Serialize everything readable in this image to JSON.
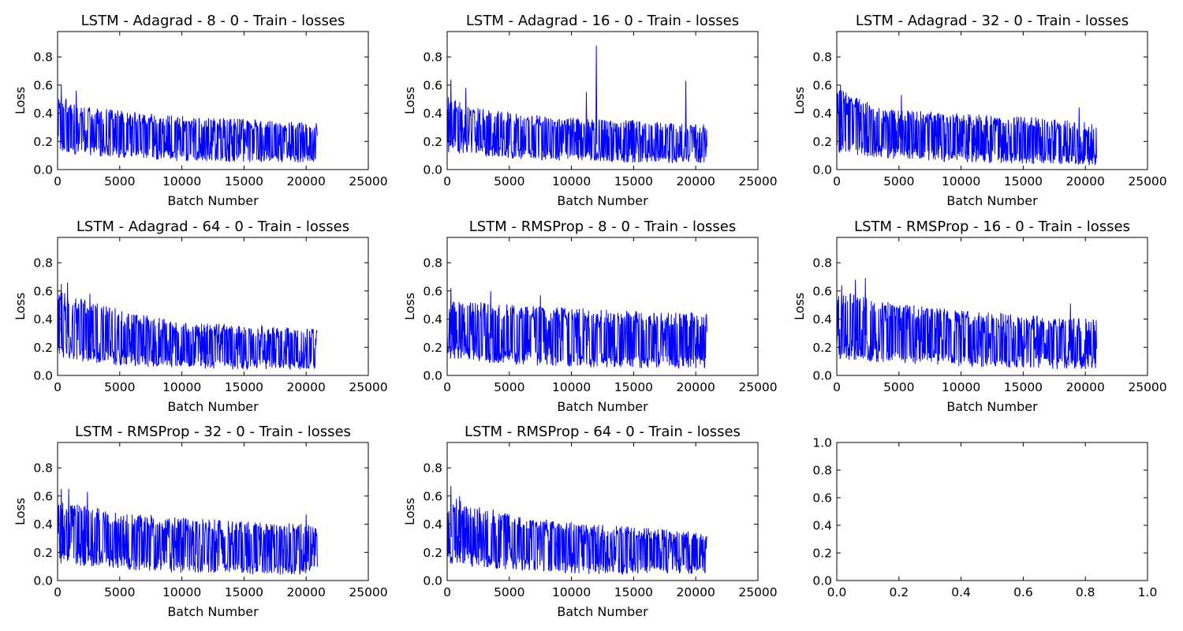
{
  "figure": {
    "line_color": "#0000ff",
    "background": "#ffffff"
  },
  "chart_data": [
    {
      "type": "line",
      "title": "LSTM - Adagrad - 8 - 0 - Train - losses",
      "xlabel": "Batch Number",
      "ylabel": "Loss",
      "xlim": [
        0,
        25000
      ],
      "ylim": [
        0,
        0.98
      ],
      "xticks": [
        "0",
        "5000",
        "10000",
        "15000",
        "20000",
        "25000"
      ],
      "yticks": [
        "0.0",
        "0.2",
        "0.4",
        "0.6",
        "0.8"
      ],
      "grid": false,
      "series": [
        {
          "color": "#0000ff",
          "x_range": [
            0,
            20900
          ],
          "upper_envelope": [
            [
              0,
              0.52
            ],
            [
              3000,
              0.44
            ],
            [
              6000,
              0.41
            ],
            [
              10000,
              0.38
            ],
            [
              15000,
              0.36
            ],
            [
              20900,
              0.33
            ]
          ],
          "lower_envelope": [
            [
              0,
              0.12
            ],
            [
              5000,
              0.08
            ],
            [
              10000,
              0.06
            ],
            [
              15000,
              0.05
            ],
            [
              20900,
              0.05
            ]
          ],
          "spikes": [
            [
              300,
              0.6
            ],
            [
              1500,
              0.56
            ]
          ]
        }
      ]
    },
    {
      "type": "line",
      "title": "LSTM - Adagrad - 16 - 0 - Train - losses",
      "xlabel": "Batch Number",
      "ylabel": "Loss",
      "xlim": [
        0,
        25000
      ],
      "ylim": [
        0,
        0.98
      ],
      "xticks": [
        "0",
        "5000",
        "10000",
        "15000",
        "20000",
        "25000"
      ],
      "yticks": [
        "0.0",
        "0.2",
        "0.4",
        "0.6",
        "0.8"
      ],
      "grid": false,
      "series": [
        {
          "color": "#0000ff",
          "x_range": [
            0,
            20900
          ],
          "upper_envelope": [
            [
              0,
              0.52
            ],
            [
              3000,
              0.43
            ],
            [
              6000,
              0.4
            ],
            [
              10000,
              0.37
            ],
            [
              15000,
              0.35
            ],
            [
              20900,
              0.32
            ]
          ],
          "lower_envelope": [
            [
              0,
              0.12
            ],
            [
              5000,
              0.08
            ],
            [
              10000,
              0.06
            ],
            [
              15000,
              0.05
            ],
            [
              20900,
              0.05
            ]
          ],
          "spikes": [
            [
              300,
              0.64
            ],
            [
              1500,
              0.58
            ],
            [
              11200,
              0.55
            ],
            [
              12000,
              0.88
            ],
            [
              19200,
              0.63
            ]
          ]
        }
      ]
    },
    {
      "type": "line",
      "title": "LSTM - Adagrad - 32 - 0 - Train - losses",
      "xlabel": "Batch Number",
      "ylabel": "Loss",
      "xlim": [
        0,
        25000
      ],
      "ylim": [
        0,
        0.98
      ],
      "xticks": [
        "0",
        "5000",
        "10000",
        "15000",
        "20000",
        "25000"
      ],
      "yticks": [
        "0.0",
        "0.2",
        "0.4",
        "0.6",
        "0.8"
      ],
      "grid": false,
      "series": [
        {
          "color": "#0000ff",
          "x_range": [
            0,
            20900
          ],
          "upper_envelope": [
            [
              0,
              0.58
            ],
            [
              3000,
              0.46
            ],
            [
              6000,
              0.42
            ],
            [
              10000,
              0.4
            ],
            [
              15000,
              0.38
            ],
            [
              20900,
              0.33
            ]
          ],
          "lower_envelope": [
            [
              0,
              0.12
            ],
            [
              5000,
              0.07
            ],
            [
              10000,
              0.05
            ],
            [
              15000,
              0.04
            ],
            [
              20900,
              0.03
            ]
          ],
          "spikes": [
            [
              300,
              0.6
            ],
            [
              5200,
              0.53
            ],
            [
              19500,
              0.44
            ]
          ]
        }
      ]
    },
    {
      "type": "line",
      "title": "LSTM - Adagrad - 64 - 0 - Train - losses",
      "xlabel": "Batch Number",
      "ylabel": "Loss",
      "xlim": [
        0,
        25000
      ],
      "ylim": [
        0,
        0.98
      ],
      "xticks": [
        "0",
        "5000",
        "10000",
        "15000",
        "20000",
        "25000"
      ],
      "yticks": [
        "0.0",
        "0.2",
        "0.4",
        "0.6",
        "0.8"
      ],
      "grid": false,
      "series": [
        {
          "color": "#0000ff",
          "x_range": [
            0,
            20900
          ],
          "upper_envelope": [
            [
              0,
              0.6
            ],
            [
              3000,
              0.52
            ],
            [
              6000,
              0.45
            ],
            [
              10000,
              0.38
            ],
            [
              15000,
              0.36
            ],
            [
              20900,
              0.33
            ]
          ],
          "lower_envelope": [
            [
              0,
              0.12
            ],
            [
              5000,
              0.07
            ],
            [
              10000,
              0.05
            ],
            [
              15000,
              0.04
            ],
            [
              20900,
              0.04
            ]
          ],
          "spikes": [
            [
              300,
              0.65
            ],
            [
              800,
              0.66
            ],
            [
              2600,
              0.58
            ]
          ]
        }
      ]
    },
    {
      "type": "line",
      "title": "LSTM - RMSProp - 8 - 0 - Train - losses",
      "xlabel": "Batch Number",
      "ylabel": "Loss",
      "xlim": [
        0,
        25000
      ],
      "ylim": [
        0,
        0.98
      ],
      "xticks": [
        "0",
        "5000",
        "10000",
        "15000",
        "20000",
        "25000"
      ],
      "yticks": [
        "0.0",
        "0.2",
        "0.4",
        "0.6",
        "0.8"
      ],
      "grid": false,
      "series": [
        {
          "color": "#0000ff",
          "x_range": [
            0,
            20900
          ],
          "upper_envelope": [
            [
              0,
              0.55
            ],
            [
              3000,
              0.52
            ],
            [
              6000,
              0.5
            ],
            [
              10000,
              0.48
            ],
            [
              15000,
              0.46
            ],
            [
              20900,
              0.44
            ]
          ],
          "lower_envelope": [
            [
              0,
              0.12
            ],
            [
              5000,
              0.08
            ],
            [
              10000,
              0.06
            ],
            [
              15000,
              0.05
            ],
            [
              20900,
              0.05
            ]
          ],
          "spikes": [
            [
              300,
              0.62
            ],
            [
              3500,
              0.6
            ],
            [
              7500,
              0.57
            ]
          ]
        }
      ]
    },
    {
      "type": "line",
      "title": "LSTM - RMSProp - 16 - 0 - Train - losses",
      "xlabel": "Batch Number",
      "ylabel": "Loss",
      "xlim": [
        0,
        25000
      ],
      "ylim": [
        0,
        0.98
      ],
      "xticks": [
        "0",
        "5000",
        "10000",
        "15000",
        "20000",
        "25000"
      ],
      "yticks": [
        "0.0",
        "0.2",
        "0.4",
        "0.6",
        "0.8"
      ],
      "grid": false,
      "series": [
        {
          "color": "#0000ff",
          "x_range": [
            0,
            20900
          ],
          "upper_envelope": [
            [
              0,
              0.6
            ],
            [
              3000,
              0.55
            ],
            [
              6000,
              0.5
            ],
            [
              10000,
              0.46
            ],
            [
              15000,
              0.43
            ],
            [
              20900,
              0.4
            ]
          ],
          "lower_envelope": [
            [
              0,
              0.12
            ],
            [
              5000,
              0.08
            ],
            [
              10000,
              0.06
            ],
            [
              15000,
              0.05
            ],
            [
              20900,
              0.04
            ]
          ],
          "spikes": [
            [
              400,
              0.64
            ],
            [
              1500,
              0.68
            ],
            [
              2300,
              0.69
            ],
            [
              18800,
              0.51
            ]
          ]
        }
      ]
    },
    {
      "type": "line",
      "title": "LSTM - RMSProp - 32 - 0 - Train - losses",
      "xlabel": "Batch Number",
      "ylabel": "Loss",
      "xlim": [
        0,
        25000
      ],
      "ylim": [
        0,
        0.98
      ],
      "xticks": [
        "0",
        "5000",
        "10000",
        "15000",
        "20000",
        "25000"
      ],
      "yticks": [
        "0.0",
        "0.2",
        "0.4",
        "0.6",
        "0.8"
      ],
      "grid": false,
      "series": [
        {
          "color": "#0000ff",
          "x_range": [
            0,
            20900
          ],
          "upper_envelope": [
            [
              0,
              0.58
            ],
            [
              3000,
              0.52
            ],
            [
              6000,
              0.48
            ],
            [
              10000,
              0.45
            ],
            [
              15000,
              0.42
            ],
            [
              20900,
              0.4
            ]
          ],
          "lower_envelope": [
            [
              0,
              0.12
            ],
            [
              5000,
              0.08
            ],
            [
              10000,
              0.05
            ],
            [
              15000,
              0.04
            ],
            [
              20900,
              0.04
            ]
          ],
          "spikes": [
            [
              300,
              0.65
            ],
            [
              900,
              0.65
            ],
            [
              2400,
              0.63
            ],
            [
              20000,
              0.47
            ]
          ]
        }
      ]
    },
    {
      "type": "line",
      "title": "LSTM - RMSProp - 64 - 0 - Train - losses",
      "xlabel": "Batch Number",
      "ylabel": "Loss",
      "xlim": [
        0,
        25000
      ],
      "ylim": [
        0,
        0.98
      ],
      "xticks": [
        "0",
        "5000",
        "10000",
        "15000",
        "20000",
        "25000"
      ],
      "yticks": [
        "0.0",
        "0.2",
        "0.4",
        "0.6",
        "0.8"
      ],
      "grid": false,
      "series": [
        {
          "color": "#0000ff",
          "x_range": [
            0,
            20900
          ],
          "upper_envelope": [
            [
              0,
              0.6
            ],
            [
              3000,
              0.52
            ],
            [
              6000,
              0.46
            ],
            [
              10000,
              0.42
            ],
            [
              15000,
              0.38
            ],
            [
              20900,
              0.34
            ]
          ],
          "lower_envelope": [
            [
              0,
              0.12
            ],
            [
              5000,
              0.07
            ],
            [
              10000,
              0.05
            ],
            [
              15000,
              0.04
            ],
            [
              20900,
              0.04
            ]
          ],
          "spikes": [
            [
              300,
              0.67
            ],
            [
              1000,
              0.6
            ]
          ]
        }
      ]
    },
    {
      "type": "line",
      "title": "",
      "xlabel": "",
      "ylabel": "",
      "xlim": [
        0,
        1
      ],
      "ylim": [
        0,
        1
      ],
      "xticks": [
        "0.0",
        "0.2",
        "0.4",
        "0.6",
        "0.8",
        "1.0"
      ],
      "yticks": [
        "0.0",
        "0.2",
        "0.4",
        "0.6",
        "0.8",
        "1.0"
      ],
      "grid": false,
      "series": []
    }
  ]
}
